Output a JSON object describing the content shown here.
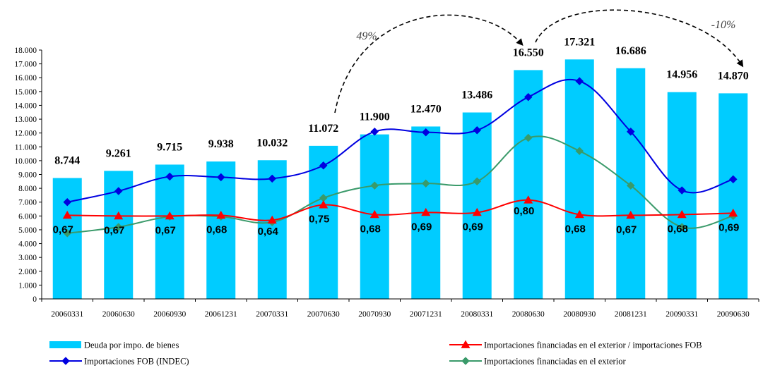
{
  "chart_data": {
    "type": "bar",
    "categories": [
      "20060331",
      "20060630",
      "20060930",
      "20061231",
      "20070331",
      "20070630",
      "20070930",
      "20071231",
      "20080331",
      "20080630",
      "20080930",
      "20081231",
      "20090331",
      "20090630"
    ],
    "bar_series": {
      "name": "Deuda por impo. de bienes",
      "values": [
        8744,
        9261,
        9715,
        9938,
        10032,
        11072,
        11900,
        12470,
        13486,
        16550,
        17321,
        16686,
        14956,
        14870
      ],
      "labels": [
        "8.744",
        "9.261",
        "9.715",
        "9.938",
        "10.032",
        "11.072",
        "11.900",
        "12.470",
        "13.486",
        "16.550",
        "17.321",
        "16.686",
        "14.956",
        "14.870"
      ],
      "color": "#00CCFF"
    },
    "line_series": [
      {
        "name": "Importaciones FOB (INDEC)",
        "values": [
          7000,
          7800,
          8850,
          8800,
          8700,
          9650,
          12100,
          12050,
          12200,
          14600,
          15750,
          12100,
          7850,
          8650
        ],
        "color": "#0000E0",
        "marker": "diamond"
      },
      {
        "name": "Importaciones financiadas en el exterior",
        "values": [
          4750,
          5200,
          5950,
          5950,
          5550,
          7300,
          8200,
          8350,
          8500,
          11650,
          10700,
          8200,
          5200,
          6000
        ],
        "color": "#3A9A6A",
        "marker": "diamond"
      },
      {
        "name": "Importaciones financiadas en el exterior / importaciones FOB",
        "values": [
          6050,
          6000,
          6000,
          6050,
          5700,
          6800,
          6100,
          6250,
          6250,
          7150,
          6100,
          6050,
          6100,
          6200
        ],
        "color": "#FF0000",
        "marker": "triangle",
        "labels": [
          "0,67",
          "0,67",
          "0,67",
          "0,68",
          "0,64",
          "0,75",
          "0,68",
          "0,69",
          "0,69",
          "0,80",
          "0,68",
          "0,67",
          "0,68",
          "0,69"
        ]
      }
    ],
    "y_axis": {
      "min": 0,
      "max": 18000,
      "step": 1000,
      "tick_labels": [
        "0",
        "1.000",
        "2.000",
        "3.000",
        "4.000",
        "5.000",
        "6.000",
        "7.000",
        "8.000",
        "9.000",
        "10.000",
        "11.000",
        "12.000",
        "13.000",
        "14.000",
        "15.000",
        "16.000",
        "17.000",
        "18.000"
      ]
    },
    "annotations": [
      {
        "text": "49%",
        "from_category": "20070630",
        "to_category": "20080630"
      },
      {
        "text": "-10%",
        "from_category": "20080630",
        "to_category": "20090630"
      }
    ],
    "legend": {
      "position": "bottom",
      "order": [
        {
          "key": "bar",
          "label": "Deuda por impo. de bienes"
        },
        {
          "key": "ratio",
          "label": "Importaciones financiadas en el exterior / importaciones FOB"
        },
        {
          "key": "fob",
          "label": "Importaciones FOB (INDEC)"
        },
        {
          "key": "fin",
          "label": "Importaciones financiadas en el exterior"
        }
      ]
    },
    "grid": false
  }
}
